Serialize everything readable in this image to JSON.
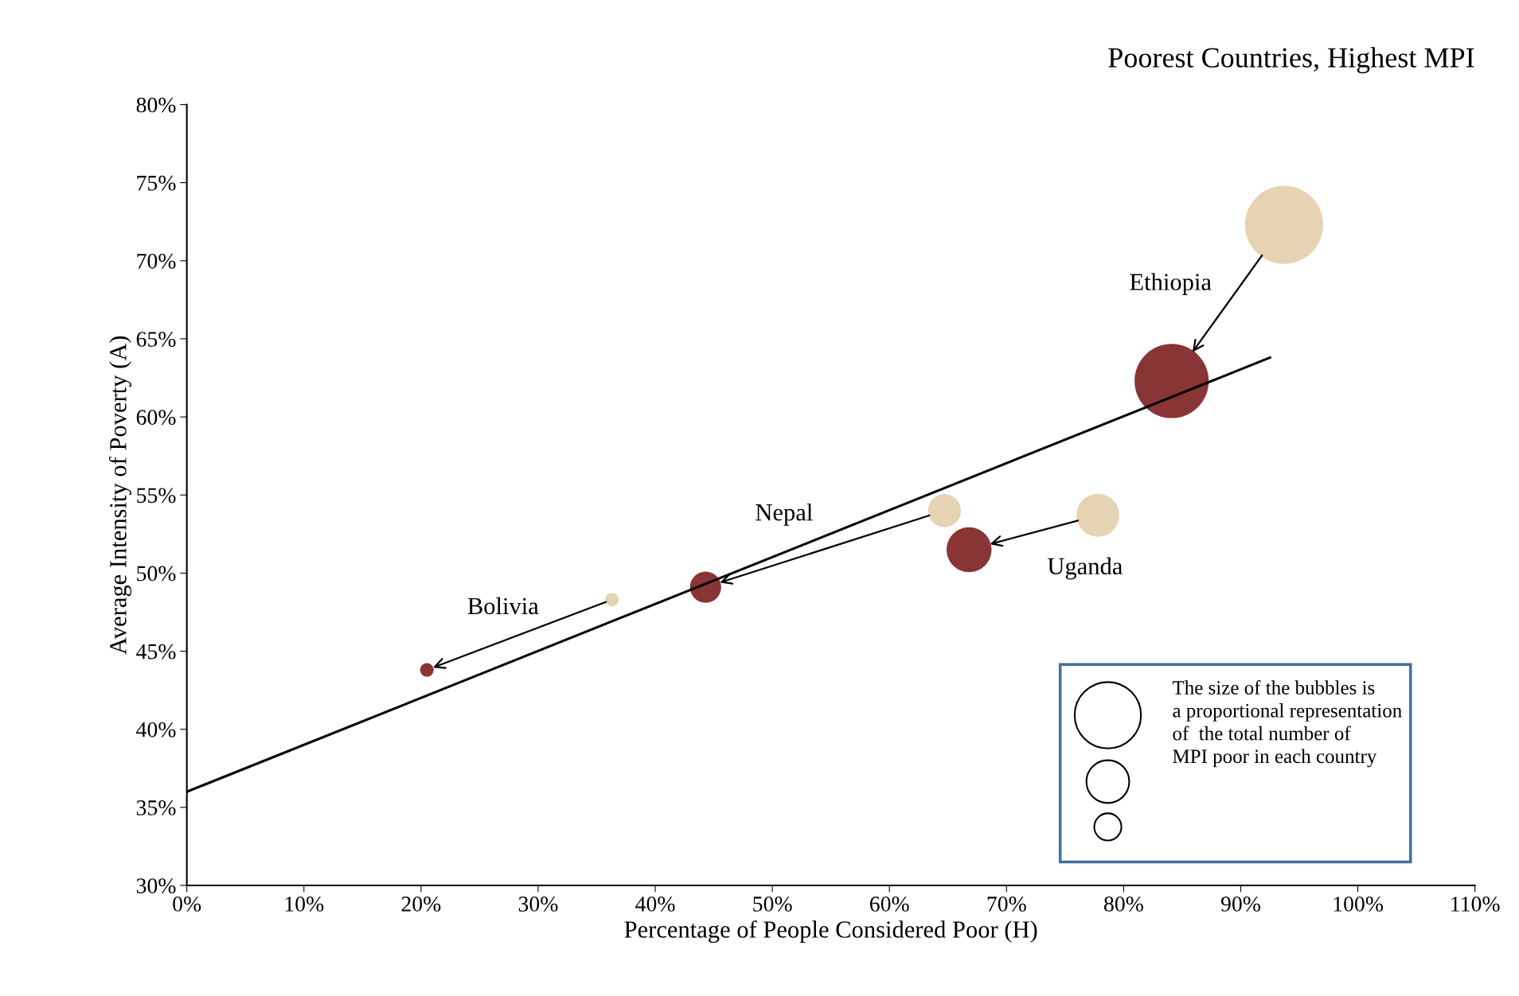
{
  "chart_data": {
    "type": "bubble",
    "subtitle": "Poorest Countries, Highest MPI",
    "xlabel": "Percentage of People Considered Poor (H)",
    "ylabel": "Average Intensity of Poverty (A)",
    "series": [
      {
        "color": "#e6d3b3",
        "x": [
          93.7,
          64.7,
          77.8,
          36.3
        ],
        "values": [
          72.3,
          54.0,
          53.7,
          48.3
        ],
        "sizes": [
          1,
          0.18,
          0.3,
          0.03
        ]
      },
      {
        "color": "#8a3535",
        "x": [
          84.1,
          44.3,
          66.8,
          20.5
        ],
        "values": [
          62.3,
          49.1,
          51.5,
          43.8
        ],
        "sizes": [
          0.9,
          0.16,
          0.33,
          0.03
        ]
      },
      {
        "type": "line",
        "color": "#000000",
        "x": [
          0,
          92.5
        ],
        "values": [
          36,
          63.8
        ]
      }
    ],
    "annotations": [
      "Ethiopia",
      "Nepal",
      "Uganda",
      "Bolivia",
      "The size of the bubbles is\na proportional representation\nof  the total number of\nMPI poor in each country"
    ],
    "xlim": [
      0,
      110
    ],
    "ylim": [
      30,
      80
    ],
    "xticks": [
      {
        "value": 0,
        "label": "0%"
      },
      {
        "value": 10,
        "label": "10%"
      },
      {
        "value": 20,
        "label": "20%"
      },
      {
        "value": 30,
        "label": "30%"
      },
      {
        "value": 40,
        "label": "40%"
      },
      {
        "value": 50,
        "label": "50%"
      },
      {
        "value": 60,
        "label": "60%"
      },
      {
        "value": 70,
        "label": "70%"
      },
      {
        "value": 80,
        "label": "80%"
      },
      {
        "value": 90,
        "label": "90%"
      },
      {
        "value": 100,
        "label": "100%"
      },
      {
        "value": 110,
        "label": "110%"
      }
    ],
    "yticks": [
      {
        "value": 30,
        "label": "30%"
      },
      {
        "value": 35,
        "label": "35%"
      },
      {
        "value": 40,
        "label": "40%"
      },
      {
        "value": 45,
        "label": "45%"
      },
      {
        "value": 50,
        "label": "50%"
      },
      {
        "value": 55,
        "label": "55%"
      },
      {
        "value": 60,
        "label": "60%"
      },
      {
        "value": 65,
        "label": "65%"
      },
      {
        "value": 70,
        "label": "70%"
      },
      {
        "value": 75,
        "label": "75%"
      },
      {
        "value": 80,
        "label": "80%"
      }
    ],
    "grid": false,
    "legend": false
  }
}
